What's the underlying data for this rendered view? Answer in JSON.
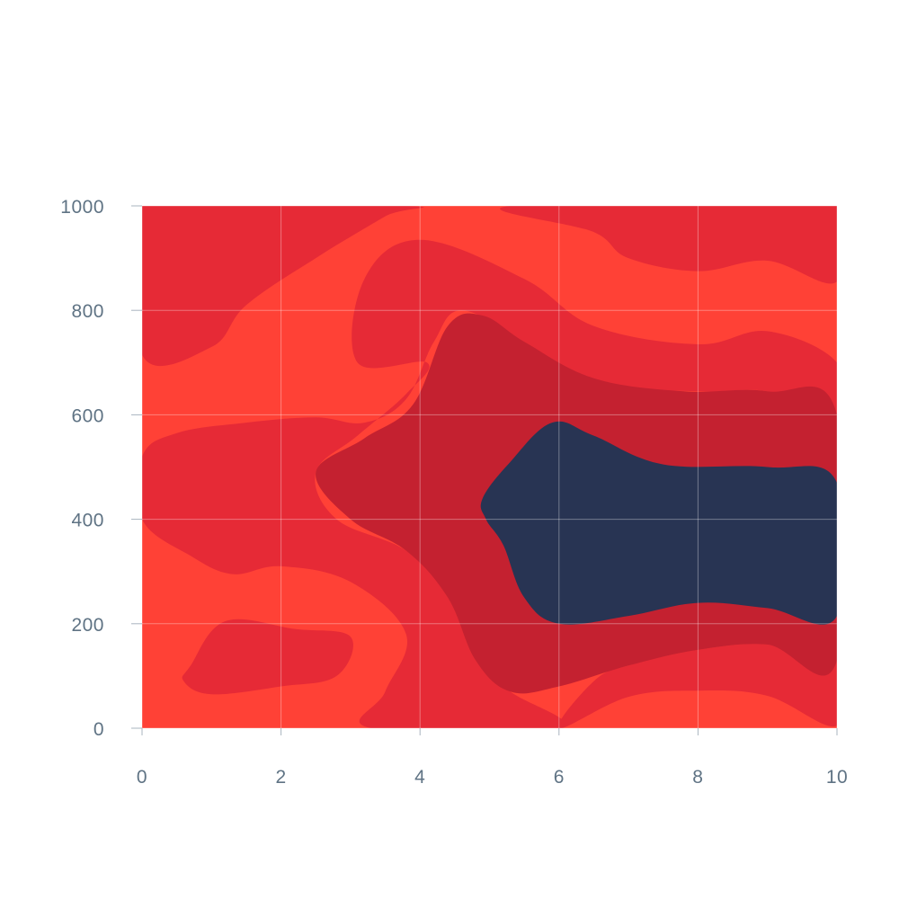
{
  "chart_data": {
    "type": "heatmap",
    "subtype": "filled-contour",
    "title": "",
    "xlabel": "",
    "ylabel": "",
    "xlim": [
      0,
      10
    ],
    "ylim": [
      0,
      1000
    ],
    "x_ticks": [
      0,
      2,
      4,
      6,
      8,
      10
    ],
    "y_ticks": [
      0,
      200,
      400,
      600,
      800,
      1000
    ],
    "x_tick_labels": [
      "0",
      "2",
      "4",
      "6",
      "8",
      "10"
    ],
    "y_tick_labels": [
      "0",
      "200",
      "400",
      "600",
      "800",
      "1000"
    ],
    "grid": true,
    "legend": "none",
    "levels": [
      {
        "level": 0,
        "color": "#ff4136"
      },
      {
        "level": 1,
        "color": "#e62a36"
      },
      {
        "level": 2,
        "color": "#c42130"
      },
      {
        "level": 3,
        "color": "#283453"
      }
    ],
    "regions": [
      {
        "level": 1,
        "boundary": [
          [
            0,
            715
          ],
          [
            1,
            730
          ],
          [
            1.5,
            810
          ],
          [
            2.5,
            900
          ],
          [
            3.5,
            980
          ],
          [
            3.8,
            1000
          ],
          [
            0,
            1000
          ]
        ]
      },
      {
        "level": 1,
        "boundary": [
          [
            5.3,
            1000
          ],
          [
            6.5,
            950
          ],
          [
            7,
            900
          ],
          [
            8,
            875
          ],
          [
            9,
            895
          ],
          [
            10,
            855
          ],
          [
            10,
            1000
          ]
        ]
      },
      {
        "level": 1,
        "boundary": [
          [
            3.1,
            700
          ],
          [
            3.2,
            860
          ],
          [
            4,
            935
          ],
          [
            5.5,
            860
          ],
          [
            6.5,
            770
          ],
          [
            8,
            735
          ],
          [
            9,
            760
          ],
          [
            10,
            700
          ],
          [
            10,
            600
          ],
          [
            9,
            645
          ],
          [
            8,
            645
          ],
          [
            6.5,
            660
          ],
          [
            5.5,
            740
          ],
          [
            4.6,
            800
          ],
          [
            4.2,
            740
          ],
          [
            3.8,
            630
          ],
          [
            3.2,
            585
          ],
          [
            2.5,
            595
          ],
          [
            1.5,
            585
          ],
          [
            0.5,
            565
          ],
          [
            0,
            520
          ],
          [
            0,
            400
          ],
          [
            0.7,
            330
          ],
          [
            1.3,
            295
          ],
          [
            2,
            310
          ],
          [
            3,
            280
          ],
          [
            3.8,
            180
          ],
          [
            3.5,
            70
          ],
          [
            3.3,
            0
          ],
          [
            6,
            0
          ],
          [
            5.3,
            70
          ],
          [
            4.8,
            130
          ],
          [
            4.4,
            250
          ],
          [
            3.8,
            340
          ],
          [
            2.8,
            400
          ],
          [
            2.5,
            490
          ],
          [
            3.1,
            560
          ],
          [
            3.8,
            640
          ],
          [
            4.1,
            700
          ]
        ]
      },
      {
        "level": 1,
        "boundary": [
          [
            0.7,
            120
          ],
          [
            1.2,
            205
          ],
          [
            2.2,
            190
          ],
          [
            3,
            175
          ],
          [
            2.8,
            100
          ],
          [
            2,
            80
          ],
          [
            1,
            65
          ],
          [
            0.6,
            90
          ]
        ]
      },
      {
        "level": 1,
        "boundary": [
          [
            6,
            0
          ],
          [
            7,
            60
          ],
          [
            8,
            72
          ],
          [
            9,
            62
          ],
          [
            10,
            5
          ],
          [
            10,
            130
          ],
          [
            9,
            160
          ],
          [
            8,
            150
          ],
          [
            7,
            120
          ],
          [
            6.5,
            90
          ]
        ]
      },
      {
        "level": 2,
        "boundary": [
          [
            2.5,
            490
          ],
          [
            3.2,
            555
          ],
          [
            3.9,
            620
          ],
          [
            4.4,
            770
          ],
          [
            4.9,
            790
          ],
          [
            5.5,
            740
          ],
          [
            6.5,
            670
          ],
          [
            7.8,
            645
          ],
          [
            9,
            645
          ],
          [
            10,
            600
          ],
          [
            10,
            130
          ],
          [
            9,
            160
          ],
          [
            8,
            150
          ],
          [
            7,
            120
          ],
          [
            6,
            80
          ],
          [
            5.3,
            70
          ],
          [
            4.8,
            130
          ],
          [
            4.4,
            250
          ],
          [
            3.8,
            340
          ],
          [
            3,
            400
          ]
        ]
      },
      {
        "level": 3,
        "boundary": [
          [
            4.9,
            440
          ],
          [
            5.3,
            510
          ],
          [
            5.9,
            585
          ],
          [
            6.5,
            560
          ],
          [
            7.5,
            505
          ],
          [
            9,
            500
          ],
          [
            10,
            470
          ],
          [
            10,
            215
          ],
          [
            9,
            230
          ],
          [
            8,
            240
          ],
          [
            7,
            215
          ],
          [
            6,
            200
          ],
          [
            5.5,
            250
          ],
          [
            5.2,
            350
          ],
          [
            4.95,
            400
          ]
        ]
      }
    ]
  }
}
